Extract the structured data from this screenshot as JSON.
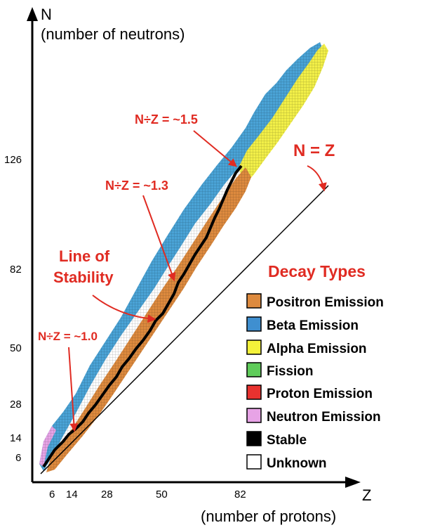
{
  "axes": {
    "y_label": "N",
    "y_sublabel": "(number of neutrons)",
    "x_label": "Z",
    "x_sublabel": "(number of protons)",
    "y_ticks": [
      "126",
      "82",
      "50",
      "28",
      "14",
      "6"
    ],
    "x_ticks": [
      "6",
      "14",
      "28",
      "50",
      "82"
    ]
  },
  "annotations": {
    "ratio_15": "N÷Z = ~1.5",
    "ratio_13": "N÷Z = ~1.3",
    "line_stability_1": "Line of",
    "line_stability_2": "Stability",
    "ratio_10": "N÷Z = ~1.0",
    "n_equals_z": "N = Z"
  },
  "legend": {
    "title": "Decay Types",
    "items": [
      {
        "label": "Positron Emission",
        "color": "#dd8a3e"
      },
      {
        "label": "Beta Emission",
        "color": "#3f8fd0"
      },
      {
        "label": "Alpha Emission",
        "color": "#f4f23a"
      },
      {
        "label": "Fission",
        "color": "#5fcc5a"
      },
      {
        "label": "Proton Emission",
        "color": "#e8322f"
      },
      {
        "label": "Neutron Emission",
        "color": "#e7a3e6"
      },
      {
        "label": "Stable",
        "color": "#000000"
      },
      {
        "label": "Unknown",
        "color": "#ffffff"
      }
    ]
  },
  "colors": {
    "annotation": "#e02b22",
    "positron": "#dd8a3e",
    "beta": "#4aa3d6",
    "alpha": "#f2ef48",
    "stable": "#000000"
  }
}
